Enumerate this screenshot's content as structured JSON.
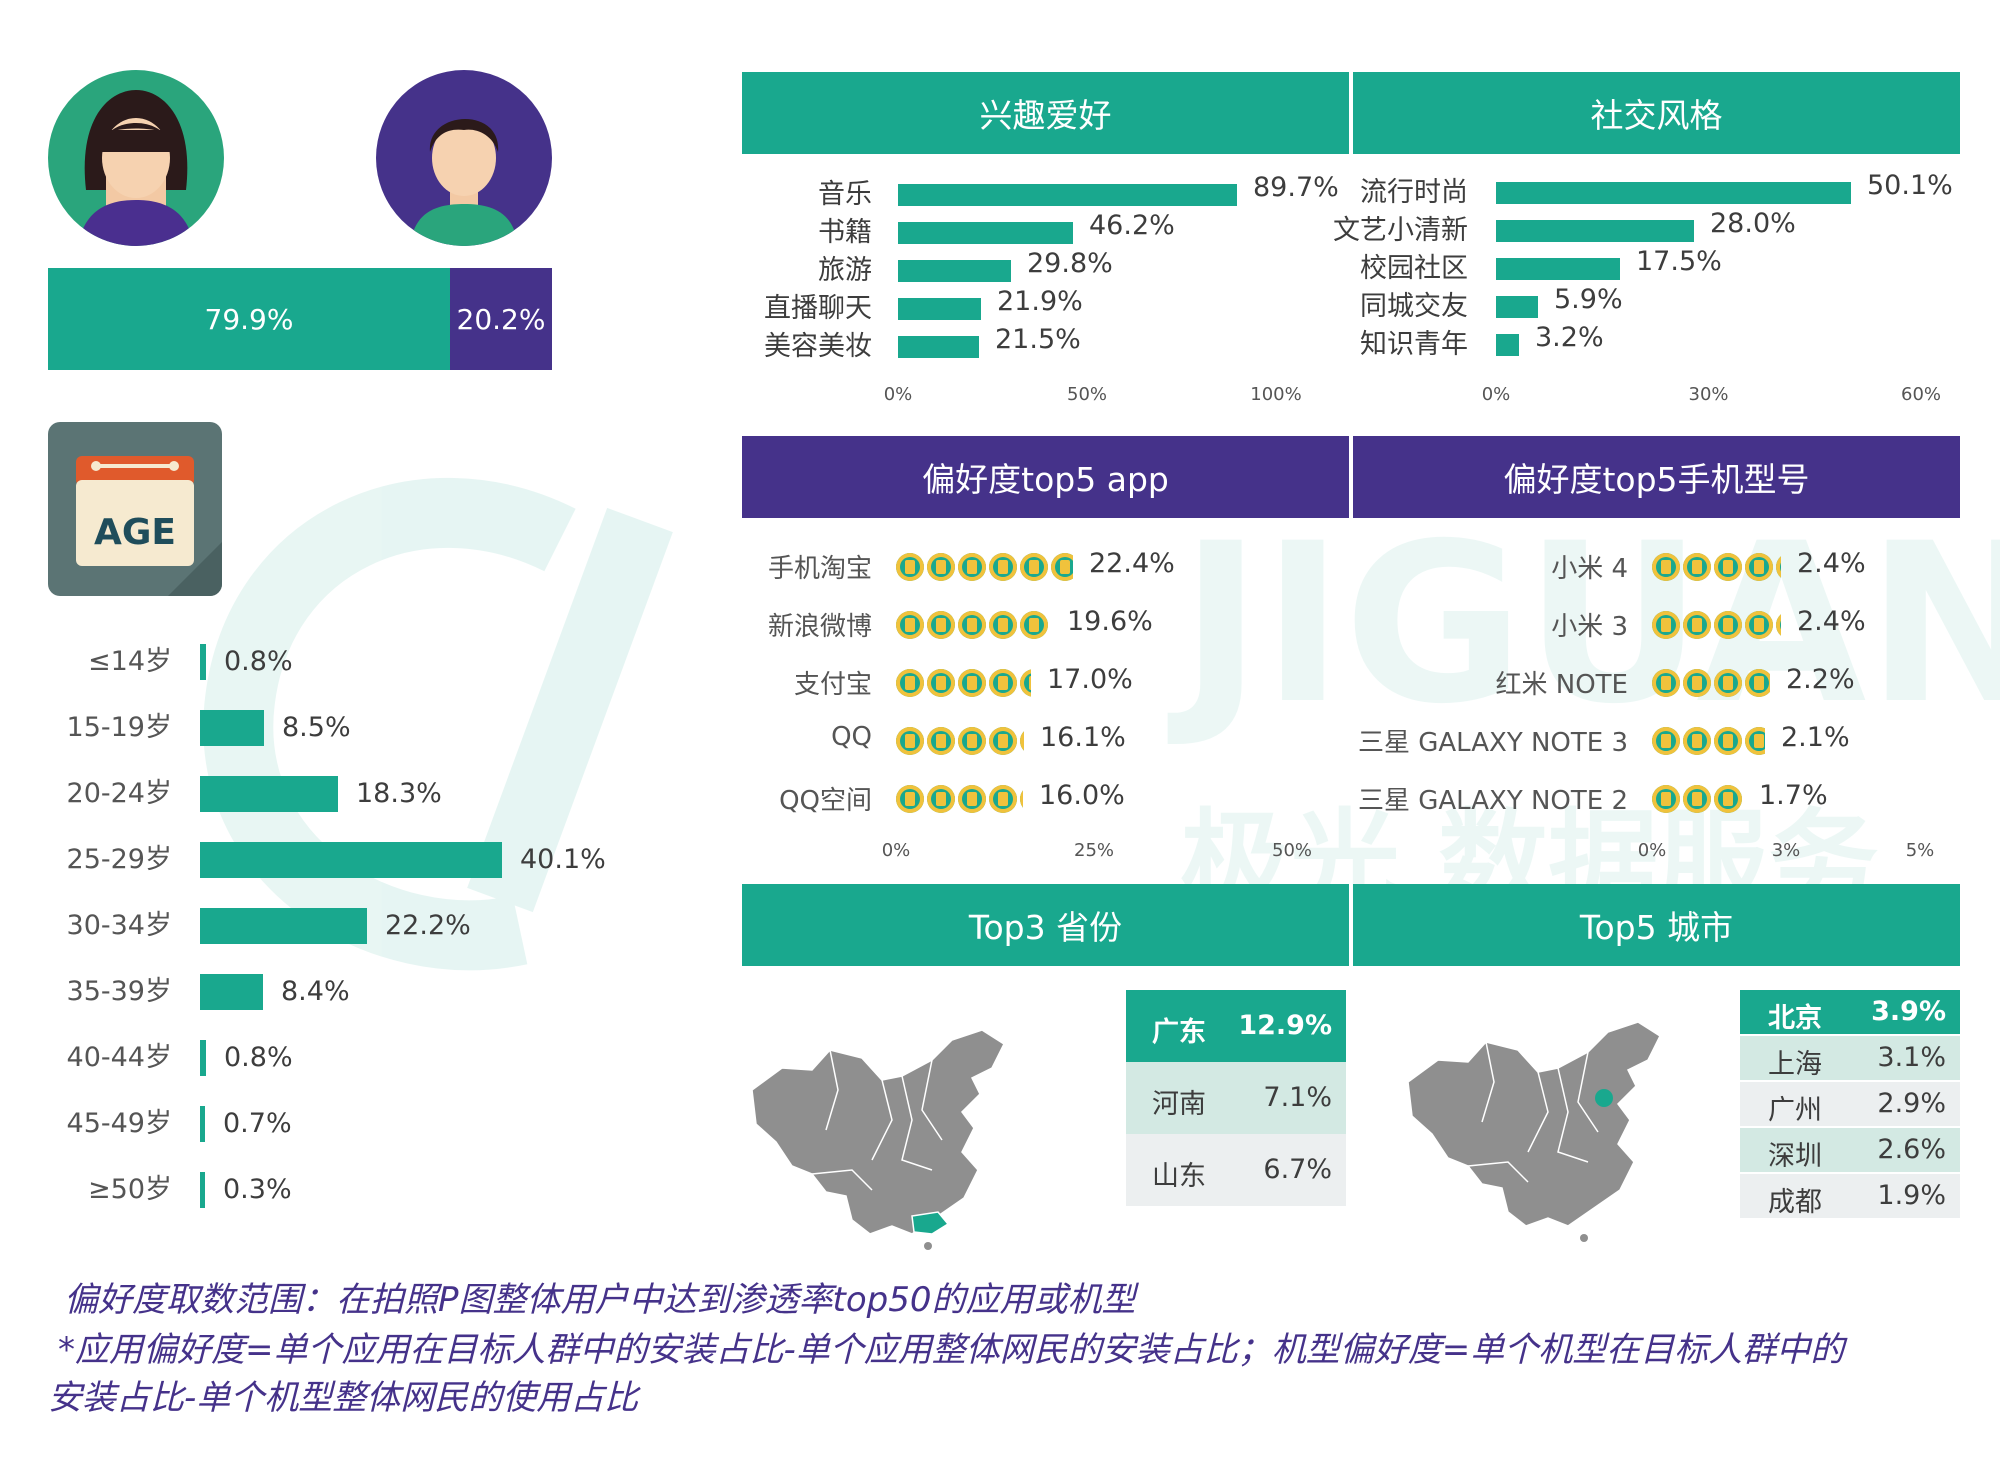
{
  "gender": {
    "female_pct": "79.9%",
    "male_pct": "20.2%",
    "female_value": 79.9,
    "male_value": 20.2,
    "colors": {
      "female": "#19a88e",
      "male": "#45328a"
    }
  },
  "age": {
    "icon_text": "AGE",
    "groups": [
      {
        "label": "≤14岁",
        "value": 0.8,
        "text": "0.8%"
      },
      {
        "label": "15-19岁",
        "value": 8.5,
        "text": "8.5%"
      },
      {
        "label": "20-24岁",
        "value": 18.3,
        "text": "18.3%"
      },
      {
        "label": "25-29岁",
        "value": 40.1,
        "text": "40.1%"
      },
      {
        "label": "30-34岁",
        "value": 22.2,
        "text": "22.2%"
      },
      {
        "label": "35-39岁",
        "value": 8.4,
        "text": "8.4%"
      },
      {
        "label": "40-44岁",
        "value": 0.8,
        "text": "0.8%"
      },
      {
        "label": "45-49岁",
        "value": 0.7,
        "text": "0.7%"
      },
      {
        "label": "≥50岁",
        "value": 0.3,
        "text": "0.3%"
      }
    ]
  },
  "panels": {
    "interests_title": "兴趣爱好",
    "social_title": "社交风格",
    "apps_title": "偏好度top5 app",
    "phones_title": "偏好度top5手机型号",
    "provinces_title": "Top3 省份",
    "cities_title": "Top5 城市"
  },
  "chart_data": [
    {
      "type": "bar",
      "title": "兴趣爱好",
      "categories": [
        "音乐",
        "书籍",
        "旅游",
        "直播聊天",
        "美容美妆"
      ],
      "values": [
        89.7,
        46.2,
        29.8,
        21.9,
        21.5
      ],
      "labels": [
        "89.7%",
        "46.2%",
        "29.8%",
        "21.9%",
        "21.5%"
      ],
      "xlim": [
        0,
        100
      ],
      "ticks": [
        "0%",
        "50%",
        "100%"
      ]
    },
    {
      "type": "bar",
      "title": "社交风格",
      "categories": [
        "流行时尚",
        "文艺小清新",
        "校园社区",
        "同城交友",
        "知识青年"
      ],
      "values": [
        50.1,
        28.0,
        17.5,
        5.9,
        3.2
      ],
      "labels": [
        "50.1%",
        "28.0%",
        "17.5%",
        "5.9%",
        "3.2%"
      ],
      "xlim": [
        0,
        60
      ],
      "ticks": [
        "0%",
        "30%",
        "60%"
      ]
    },
    {
      "type": "bar",
      "title": "偏好度top5 app",
      "categories": [
        "手机淘宝",
        "新浪微博",
        "支付宝",
        "QQ",
        "QQ空间"
      ],
      "values": [
        22.4,
        19.6,
        17.0,
        16.1,
        16.0
      ],
      "labels": [
        "22.4%",
        "19.6%",
        "17.0%",
        "16.1%",
        "16.0%"
      ],
      "xlim": [
        0,
        50
      ],
      "ticks": [
        "0%",
        "25%",
        "50%"
      ]
    },
    {
      "type": "bar",
      "title": "偏好度top5手机型号",
      "categories": [
        "小米 4",
        "小米 3",
        "红米 NOTE",
        "三星 GALAXY NOTE 3",
        "三星 GALAXY NOTE 2"
      ],
      "values": [
        2.4,
        2.4,
        2.2,
        2.1,
        1.7
      ],
      "labels": [
        "2.4%",
        "2.4%",
        "2.2%",
        "2.1%",
        "1.7%"
      ],
      "xlim": [
        0,
        5
      ],
      "ticks": [
        "0%",
        "3%",
        "5%"
      ]
    },
    {
      "type": "table",
      "title": "Top3 省份",
      "rows": [
        [
          "广东",
          "12.9%"
        ],
        [
          "河南",
          "7.1%"
        ],
        [
          "山东",
          "6.7%"
        ]
      ]
    },
    {
      "type": "table",
      "title": "Top5 城市",
      "rows": [
        [
          "北京",
          "3.9%"
        ],
        [
          "上海",
          "3.1%"
        ],
        [
          "广州",
          "2.9%"
        ],
        [
          "深圳",
          "2.6%"
        ],
        [
          "成都",
          "1.9%"
        ]
      ]
    }
  ],
  "watermark": {
    "latin": "JIGUANG",
    "chinese": "极光 数据服务"
  },
  "notes": {
    "line1": "偏好度取数范围：在拍照P图整体用户中达到渗透率top50的应用或机型",
    "line2": "*应用偏好度=单个应用在目标人群中的安装占比-单个应用整体网民的安装占比；机型偏好度=单个机型在目标人群中的",
    "line3": "安装占比-单个机型整体网民的使用占比"
  }
}
